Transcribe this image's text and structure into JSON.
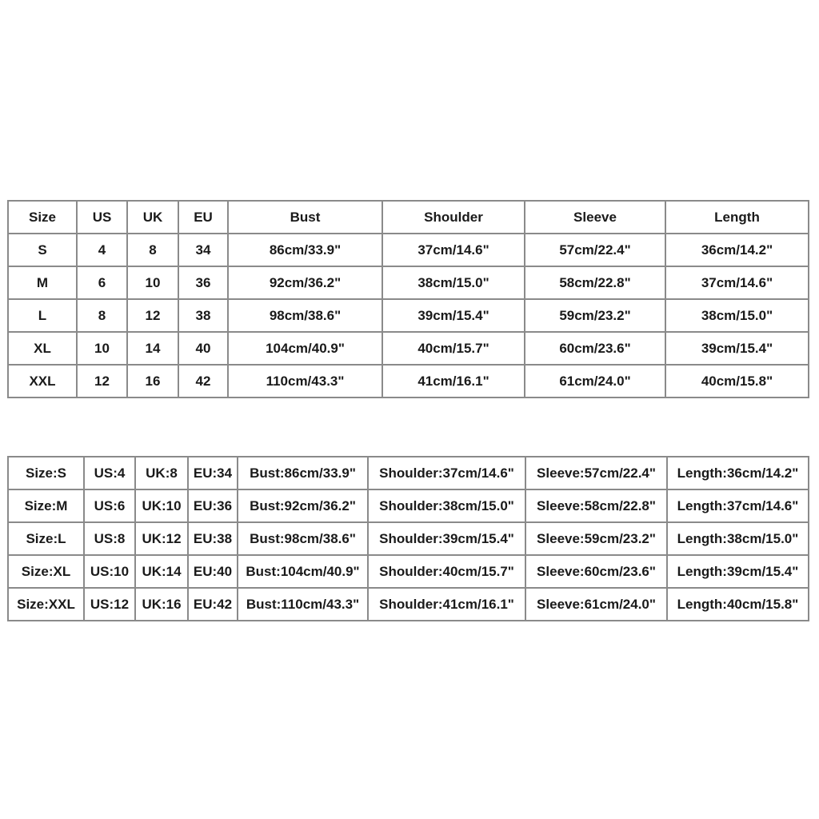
{
  "table1": {
    "headers": [
      "Size",
      "US",
      "UK",
      "EU",
      "Bust",
      "Shoulder",
      "Sleeve",
      "Length"
    ],
    "rows": [
      [
        "S",
        "4",
        "8",
        "34",
        "86cm/33.9\"",
        "37cm/14.6\"",
        "57cm/22.4\"",
        "36cm/14.2\""
      ],
      [
        "M",
        "6",
        "10",
        "36",
        "92cm/36.2\"",
        "38cm/15.0\"",
        "58cm/22.8\"",
        "37cm/14.6\""
      ],
      [
        "L",
        "8",
        "12",
        "38",
        "98cm/38.6\"",
        "39cm/15.4\"",
        "59cm/23.2\"",
        "38cm/15.0\""
      ],
      [
        "XL",
        "10",
        "14",
        "40",
        "104cm/40.9\"",
        "40cm/15.7\"",
        "60cm/23.6\"",
        "39cm/15.4\""
      ],
      [
        "XXL",
        "12",
        "16",
        "42",
        "110cm/43.3\"",
        "41cm/16.1\"",
        "61cm/24.0\"",
        "40cm/15.8\""
      ]
    ]
  },
  "table2": {
    "rows": [
      [
        "Size:S",
        "US:4",
        "UK:8",
        "EU:34",
        "Bust:86cm/33.9\"",
        "Shoulder:37cm/14.6\"",
        "Sleeve:57cm/22.4\"",
        "Length:36cm/14.2\""
      ],
      [
        "Size:M",
        "US:6",
        "UK:10",
        "EU:36",
        "Bust:92cm/36.2\"",
        "Shoulder:38cm/15.0\"",
        "Sleeve:58cm/22.8\"",
        "Length:37cm/14.6\""
      ],
      [
        "Size:L",
        "US:8",
        "UK:12",
        "EU:38",
        "Bust:98cm/38.6\"",
        "Shoulder:39cm/15.4\"",
        "Sleeve:59cm/23.2\"",
        "Length:38cm/15.0\""
      ],
      [
        "Size:XL",
        "US:10",
        "UK:14",
        "EU:40",
        "Bust:104cm/40.9\"",
        "Shoulder:40cm/15.7\"",
        "Sleeve:60cm/23.6\"",
        "Length:39cm/15.4\""
      ],
      [
        "Size:XXL",
        "US:12",
        "UK:16",
        "EU:42",
        "Bust:110cm/43.3\"",
        "Shoulder:41cm/16.1\"",
        "Sleeve:61cm/24.0\"",
        "Length:40cm/15.8\""
      ]
    ]
  }
}
